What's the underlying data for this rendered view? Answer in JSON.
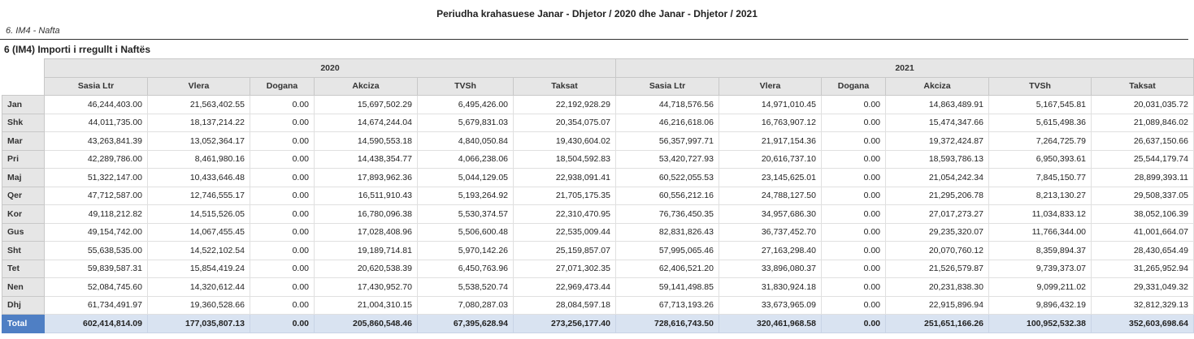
{
  "report": {
    "title": "Periudha krahasuese  Janar - Dhjetor / 2020 dhe Janar - Dhjetor / 2021",
    "subtitle": "6. IM4 - Nafta",
    "section_title": "6 (IM4) Importi i rregullt i Naftës"
  },
  "table": {
    "years": [
      "2020",
      "2021"
    ],
    "columns": [
      "Sasia Ltr",
      "Vlera",
      "Dogana",
      "Akciza",
      "TVSh",
      "Taksat"
    ],
    "rows": [
      {
        "label": "Jan",
        "v2020": [
          "46,244,403.00",
          "21,563,402.55",
          "0.00",
          "15,697,502.29",
          "6,495,426.00",
          "22,192,928.29"
        ],
        "v2021": [
          "44,718,576.56",
          "14,971,010.45",
          "0.00",
          "14,863,489.91",
          "5,167,545.81",
          "20,031,035.72"
        ]
      },
      {
        "label": "Shk",
        "v2020": [
          "44,011,735.00",
          "18,137,214.22",
          "0.00",
          "14,674,244.04",
          "5,679,831.03",
          "20,354,075.07"
        ],
        "v2021": [
          "46,216,618.06",
          "16,763,907.12",
          "0.00",
          "15,474,347.66",
          "5,615,498.36",
          "21,089,846.02"
        ]
      },
      {
        "label": "Mar",
        "v2020": [
          "43,263,841.39",
          "13,052,364.17",
          "0.00",
          "14,590,553.18",
          "4,840,050.84",
          "19,430,604.02"
        ],
        "v2021": [
          "56,357,997.71",
          "21,917,154.36",
          "0.00",
          "19,372,424.87",
          "7,264,725.79",
          "26,637,150.66"
        ]
      },
      {
        "label": "Pri",
        "v2020": [
          "42,289,786.00",
          "8,461,980.16",
          "0.00",
          "14,438,354.77",
          "4,066,238.06",
          "18,504,592.83"
        ],
        "v2021": [
          "53,420,727.93",
          "20,616,737.10",
          "0.00",
          "18,593,786.13",
          "6,950,393.61",
          "25,544,179.74"
        ]
      },
      {
        "label": "Maj",
        "v2020": [
          "51,322,147.00",
          "10,433,646.48",
          "0.00",
          "17,893,962.36",
          "5,044,129.05",
          "22,938,091.41"
        ],
        "v2021": [
          "60,522,055.53",
          "23,145,625.01",
          "0.00",
          "21,054,242.34",
          "7,845,150.77",
          "28,899,393.11"
        ]
      },
      {
        "label": "Qer",
        "v2020": [
          "47,712,587.00",
          "12,746,555.17",
          "0.00",
          "16,511,910.43",
          "5,193,264.92",
          "21,705,175.35"
        ],
        "v2021": [
          "60,556,212.16",
          "24,788,127.50",
          "0.00",
          "21,295,206.78",
          "8,213,130.27",
          "29,508,337.05"
        ]
      },
      {
        "label": "Kor",
        "v2020": [
          "49,118,212.82",
          "14,515,526.05",
          "0.00",
          "16,780,096.38",
          "5,530,374.57",
          "22,310,470.95"
        ],
        "v2021": [
          "76,736,450.35",
          "34,957,686.30",
          "0.00",
          "27,017,273.27",
          "11,034,833.12",
          "38,052,106.39"
        ]
      },
      {
        "label": "Gus",
        "v2020": [
          "49,154,742.00",
          "14,067,455.45",
          "0.00",
          "17,028,408.96",
          "5,506,600.48",
          "22,535,009.44"
        ],
        "v2021": [
          "82,831,826.43",
          "36,737,452.70",
          "0.00",
          "29,235,320.07",
          "11,766,344.00",
          "41,001,664.07"
        ]
      },
      {
        "label": "Sht",
        "v2020": [
          "55,638,535.00",
          "14,522,102.54",
          "0.00",
          "19,189,714.81",
          "5,970,142.26",
          "25,159,857.07"
        ],
        "v2021": [
          "57,995,065.46",
          "27,163,298.40",
          "0.00",
          "20,070,760.12",
          "8,359,894.37",
          "28,430,654.49"
        ]
      },
      {
        "label": "Tet",
        "v2020": [
          "59,839,587.31",
          "15,854,419.24",
          "0.00",
          "20,620,538.39",
          "6,450,763.96",
          "27,071,302.35"
        ],
        "v2021": [
          "62,406,521.20",
          "33,896,080.37",
          "0.00",
          "21,526,579.87",
          "9,739,373.07",
          "31,265,952.94"
        ]
      },
      {
        "label": "Nen",
        "v2020": [
          "52,084,745.60",
          "14,320,612.44",
          "0.00",
          "17,430,952.70",
          "5,538,520.74",
          "22,969,473.44"
        ],
        "v2021": [
          "59,141,498.85",
          "31,830,924.18",
          "0.00",
          "20,231,838.30",
          "9,099,211.02",
          "29,331,049.32"
        ]
      },
      {
        "label": "Dhj",
        "v2020": [
          "61,734,491.97",
          "19,360,528.66",
          "0.00",
          "21,004,310.15",
          "7,080,287.03",
          "28,084,597.18"
        ],
        "v2021": [
          "67,713,193.26",
          "33,673,965.09",
          "0.00",
          "22,915,896.94",
          "9,896,432.19",
          "32,812,329.13"
        ]
      }
    ],
    "total": {
      "label": "Total",
      "v2020": [
        "602,414,814.09",
        "177,035,807.13",
        "0.00",
        "205,860,548.46",
        "67,395,628.94",
        "273,256,177.40"
      ],
      "v2021": [
        "728,616,743.50",
        "320,461,968.58",
        "0.00",
        "251,651,166.26",
        "100,952,532.38",
        "352,603,698.64"
      ]
    }
  }
}
